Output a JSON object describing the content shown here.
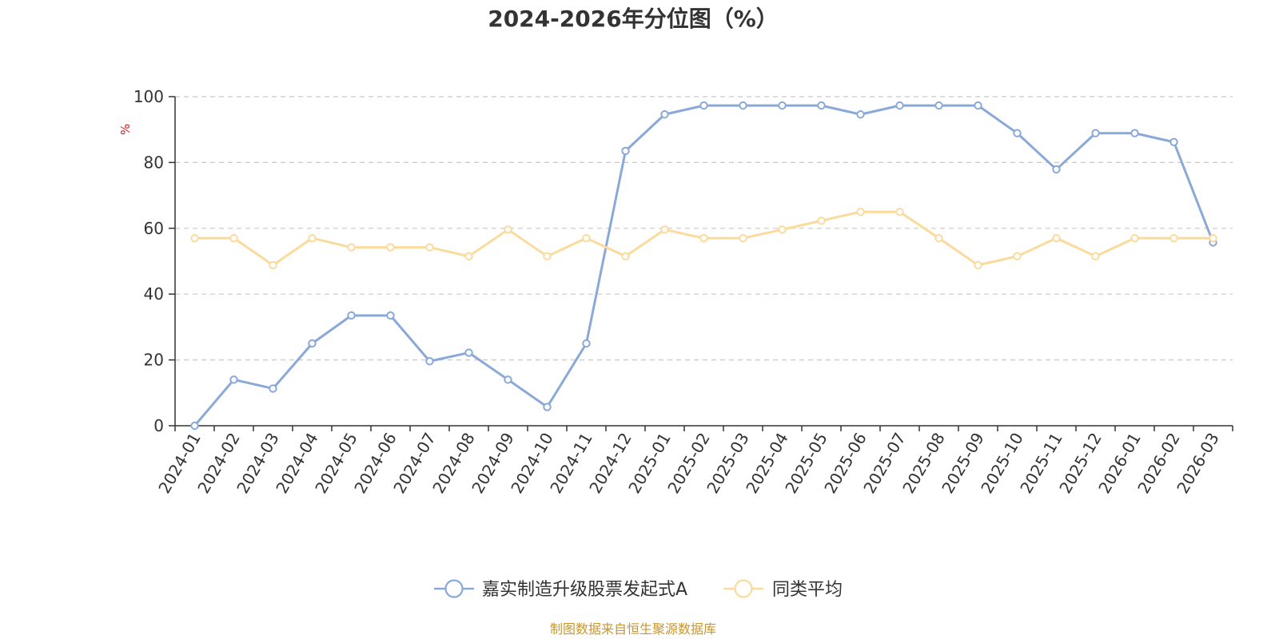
{
  "chart_data": {
    "type": "line",
    "title": "2024-2026年分位图（%）",
    "ylabel": "%",
    "xlabel": "",
    "ylim": [
      0,
      100
    ],
    "yticks": [
      0,
      20,
      40,
      60,
      80,
      100
    ],
    "grid": true,
    "legend_position": "bottom",
    "categories": [
      "2024-01",
      "2024-02",
      "2024-03",
      "2024-04",
      "2024-05",
      "2024-06",
      "2024-07",
      "2024-08",
      "2024-09",
      "2024-10",
      "2024-11",
      "2024-12",
      "2025-01",
      "2025-02",
      "2025-03",
      "2025-04",
      "2025-05",
      "2025-06",
      "2025-07",
      "2025-08",
      "2025-09",
      "2025-10",
      "2025-11",
      "2025-12",
      "2026-01",
      "2026-02",
      "2026-03"
    ],
    "series": [
      {
        "name": "嘉实制造升级股票发起式A",
        "color": "#8aa9d8",
        "values": [
          0,
          14,
          11.3,
          25,
          33.5,
          33.5,
          19.6,
          22.2,
          14,
          5.7,
          25,
          83.5,
          94.6,
          97.3,
          97.3,
          97.3,
          97.3,
          94.6,
          97.3,
          97.3,
          97.3,
          88.9,
          77.9,
          88.9,
          88.9,
          86.2,
          55.7
        ]
      },
      {
        "name": "同类平均",
        "color": "#fbdb9c",
        "values": [
          57,
          57,
          48.8,
          57,
          54.2,
          54.2,
          54.2,
          51.5,
          59.6,
          51.5,
          57,
          51.5,
          59.6,
          57,
          57,
          59.6,
          62.3,
          65,
          65,
          57,
          48.8,
          51.5,
          57,
          51.5,
          57,
          57,
          57
        ]
      }
    ]
  },
  "footer": {
    "source": "制图数据来自恒生聚源数据库"
  }
}
